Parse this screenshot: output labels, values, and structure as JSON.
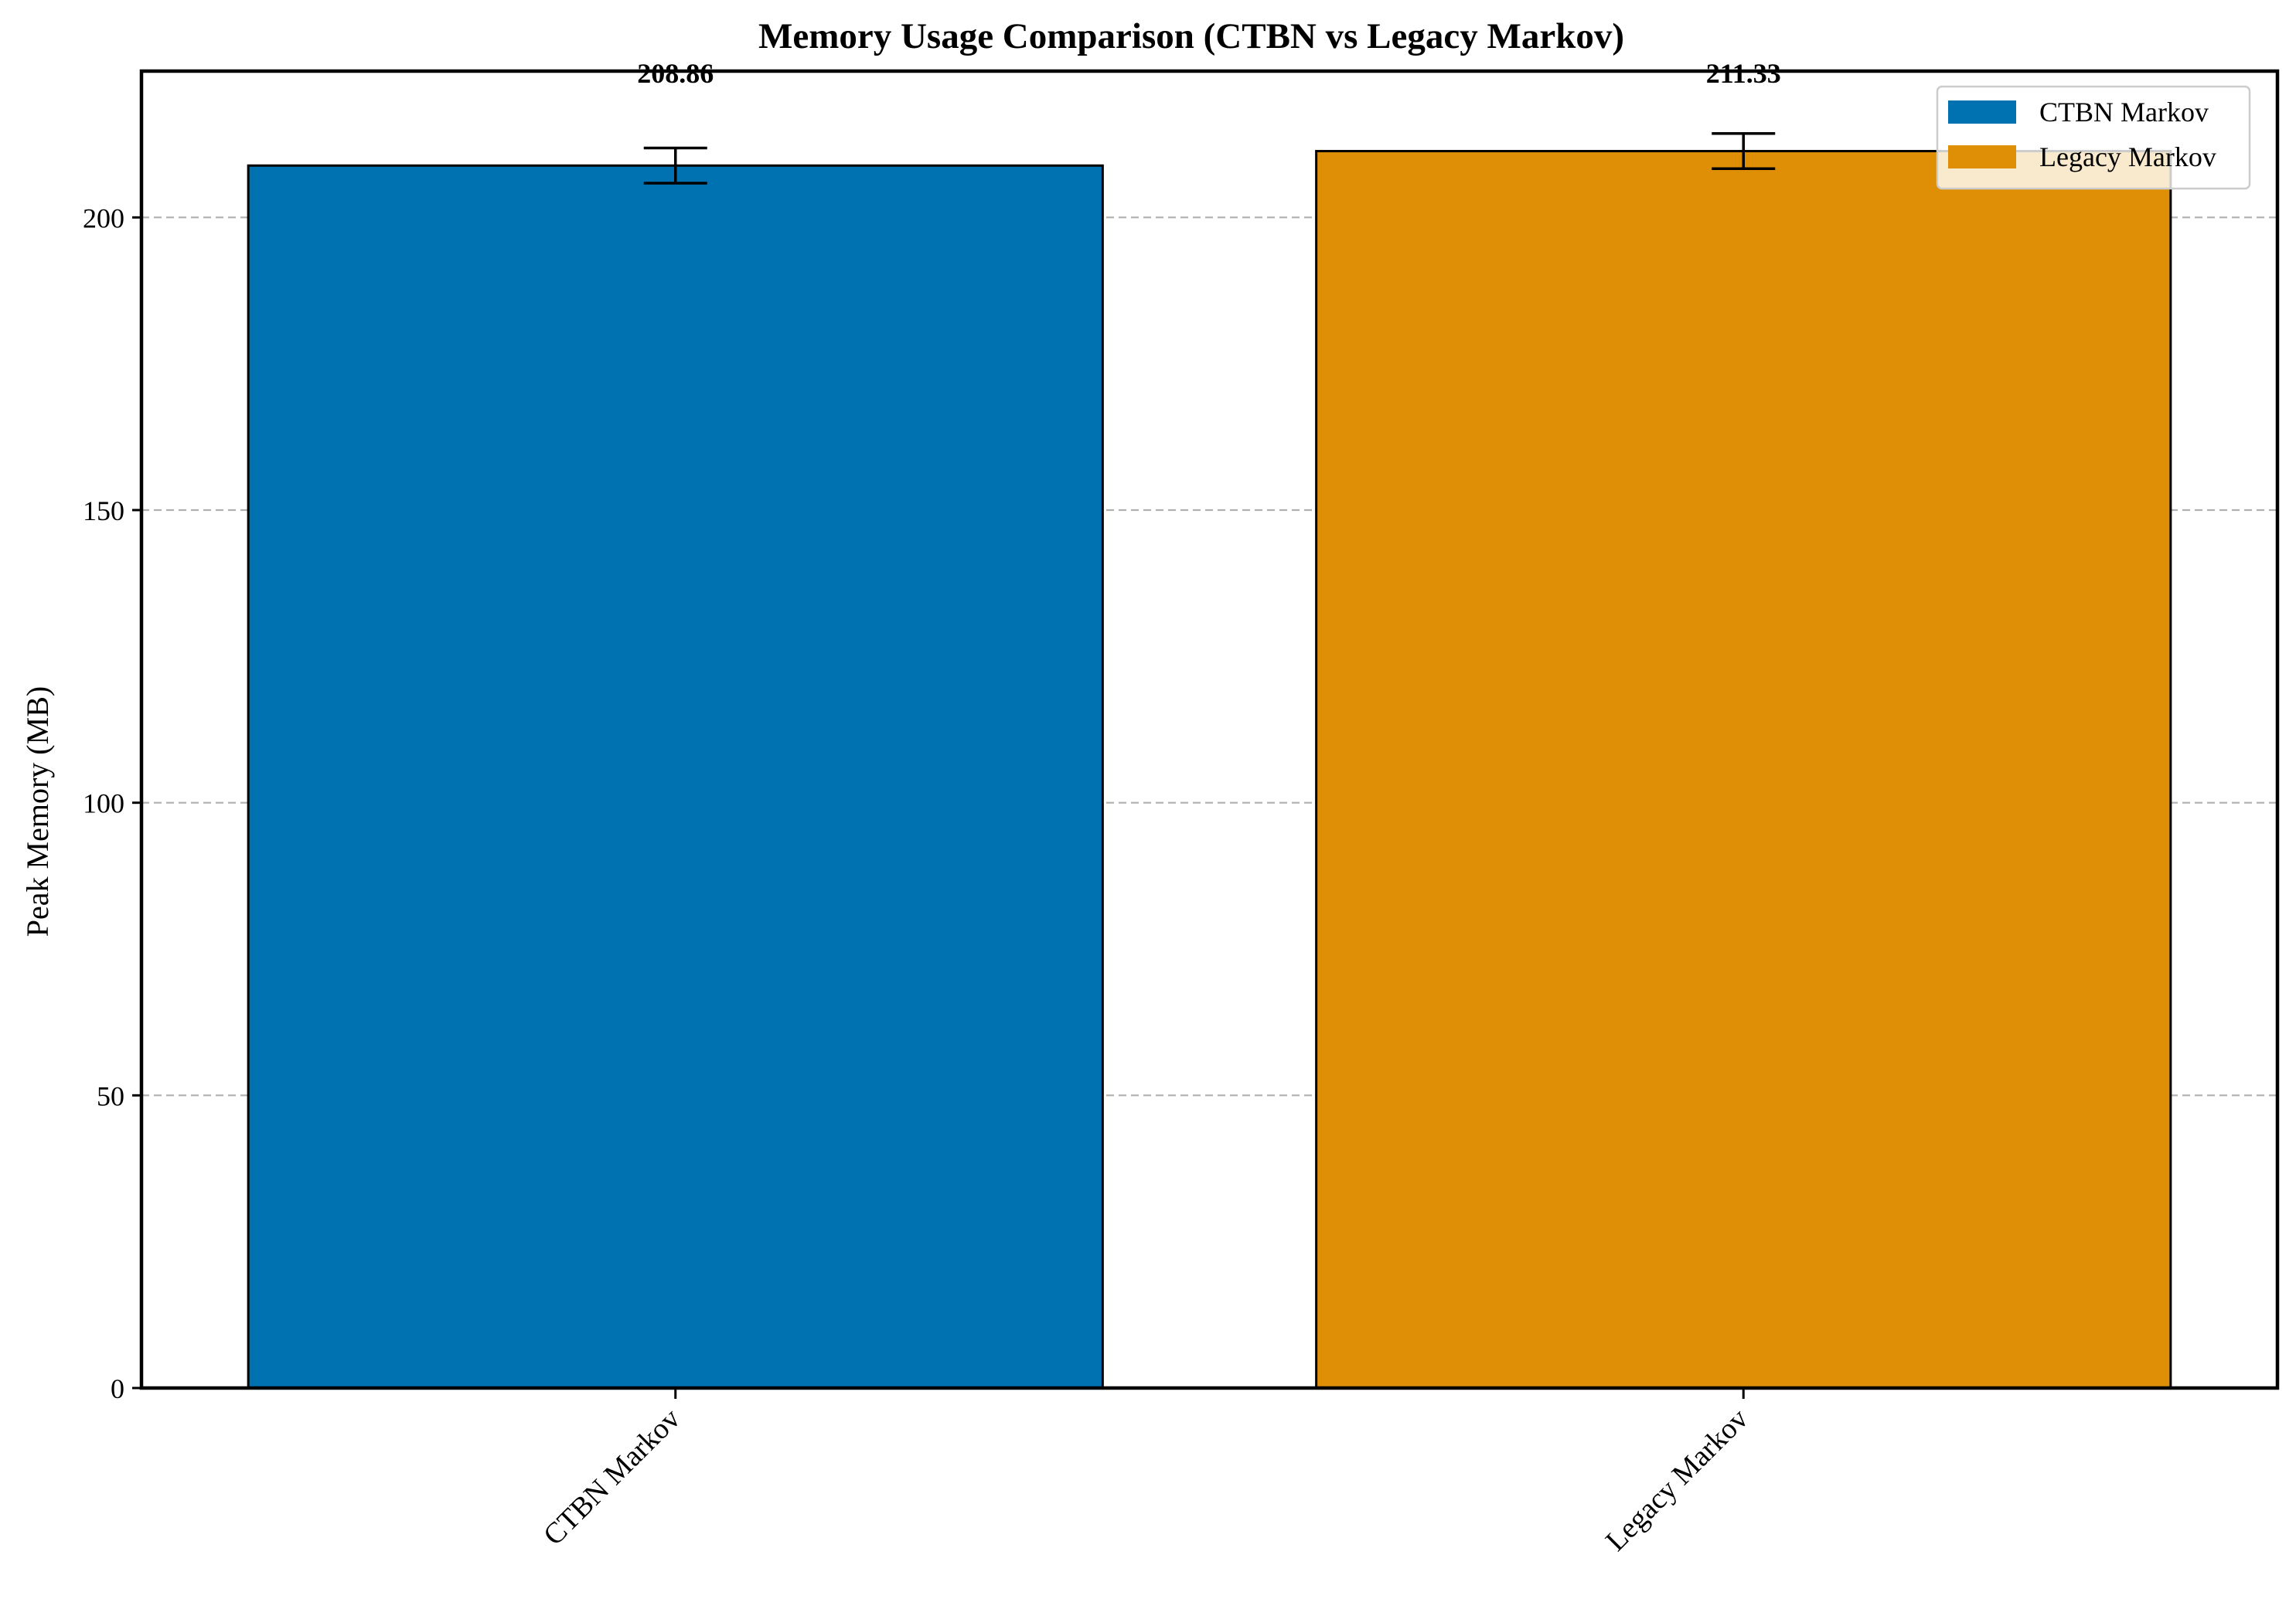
{
  "chart_data": {
    "type": "bar",
    "title": "Memory Usage Comparison (CTBN vs Legacy Markov)",
    "xlabel": "",
    "ylabel": "Peak Memory (MB)",
    "categories": [
      "CTBN Markov",
      "Legacy Markov"
    ],
    "values": [
      208.86,
      211.33
    ],
    "errors": [
      3.0,
      3.0
    ],
    "value_labels": [
      "208.86",
      "211.33"
    ],
    "colors": [
      "#0072B2",
      "#DE8F05"
    ],
    "ylim": [
      0,
      225
    ],
    "yticks": [
      0,
      50,
      100,
      150,
      200
    ],
    "ytick_labels": [
      "0",
      "50",
      "100",
      "150",
      "200"
    ],
    "grid": "y-dashed",
    "legend": {
      "position": "upper-right",
      "entries": [
        {
          "label": "CTBN Markov",
          "color": "#0072B2"
        },
        {
          "label": "Legacy Markov",
          "color": "#DE8F05"
        }
      ]
    }
  }
}
